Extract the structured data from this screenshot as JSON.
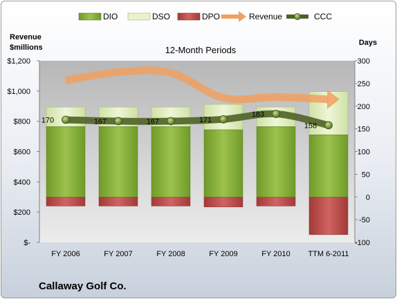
{
  "company": "Callaway Golf Co.",
  "chart_data": {
    "type": "bar",
    "title": "12-Month Periods",
    "categories": [
      "FY 2006",
      "FY 2007",
      "FY 2008",
      "FY 2009",
      "FY 2010",
      "TTM 6-2011"
    ],
    "left_axis": {
      "label": [
        "Revenue",
        "$millions"
      ],
      "ylim": [
        0,
        1200
      ],
      "ticks": [
        0,
        200,
        400,
        600,
        800,
        1000,
        1200
      ],
      "tick_labels": [
        "$-",
        "$200",
        "$400",
        "$600",
        "$800",
        "$1,000",
        "$1,200"
      ]
    },
    "right_axis": {
      "label": "Days",
      "ylim": [
        -100,
        300
      ],
      "ticks": [
        -100,
        -50,
        0,
        50,
        100,
        150,
        200,
        250,
        300
      ]
    },
    "legend": [
      "DIO",
      "DSO",
      "DPO",
      "Revenue",
      "CCC"
    ],
    "legend_position": "top",
    "series": [
      {
        "name": "DIO",
        "axis": "right",
        "values": [
          155,
          155,
          155,
          148,
          155,
          137
        ],
        "color": "#8cb43c"
      },
      {
        "name": "DSO",
        "axis": "right",
        "values": [
          43,
          43,
          43,
          56,
          43,
          95
        ],
        "color": "#e0eec0"
      },
      {
        "name": "DPO",
        "axis": "right",
        "values": [
          -20,
          -20,
          -20,
          -22,
          -20,
          -83
        ],
        "color": "#c0504d"
      },
      {
        "name": "Revenue",
        "axis": "left",
        "values": [
          1070,
          1125,
          1120,
          955,
          960,
          945
        ],
        "color": "#f0a060"
      },
      {
        "name": "CCC",
        "axis": "right",
        "values": [
          170,
          167,
          167,
          171,
          183,
          158
        ],
        "color": "#4f6228",
        "labels": [
          "170",
          "167",
          "167",
          "171",
          "183",
          "158"
        ]
      }
    ],
    "grid": false
  }
}
